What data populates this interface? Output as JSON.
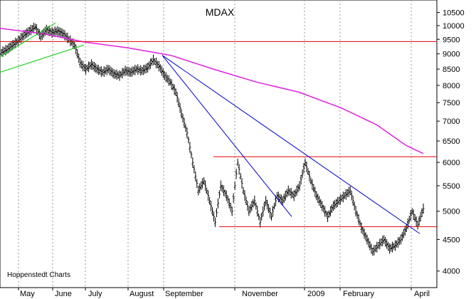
{
  "chart_data": {
    "type": "candlestick",
    "title": "MDAX",
    "credit": "Hoppenstedt Charts",
    "y_scale": "log",
    "ylim": [
      3800,
      10800
    ],
    "y_ticks": [
      10500,
      10000,
      9500,
      9000,
      8500,
      8000,
      7500,
      7000,
      6500,
      6000,
      5500,
      5000,
      4500,
      4000
    ],
    "x_labels": [
      "May",
      "June",
      "July",
      "August",
      "September",
      "November",
      "2009",
      "February",
      "April"
    ],
    "grid": "vertical dotted",
    "colors": {
      "price": "#000000",
      "ma_200": "#e020e0",
      "horizontal_levels": "#e00000",
      "trend_down": "#0000cc",
      "trend_up": "#00cc00",
      "background": "#ffffff"
    },
    "horizontal_levels": [
      9420,
      6130,
      4720
    ],
    "close_series": [
      9050,
      9150,
      9300,
      9450,
      9650,
      9800,
      9950,
      9600,
      9850,
      9750,
      9800,
      9700,
      9500,
      9300,
      8700,
      8500,
      8650,
      8500,
      8400,
      8500,
      8350,
      8300,
      8450,
      8400,
      8500,
      8450,
      8550,
      8800,
      8600,
      8300,
      8100,
      7800,
      7200,
      6700,
      6000,
      5400,
      5600,
      5200,
      4800,
      5500,
      5300,
      5000,
      6000,
      5400,
      5000,
      5200,
      4800,
      5200,
      4900,
      5300,
      5200,
      5400,
      5300,
      5500,
      6000,
      5600,
      5300,
      5100,
      4900,
      5100,
      5200,
      5300,
      5400,
      5000,
      4700,
      4500,
      4300,
      4400,
      4500,
      4350,
      4400,
      4500,
      4700,
      5000,
      4750,
      5050
    ]
  }
}
